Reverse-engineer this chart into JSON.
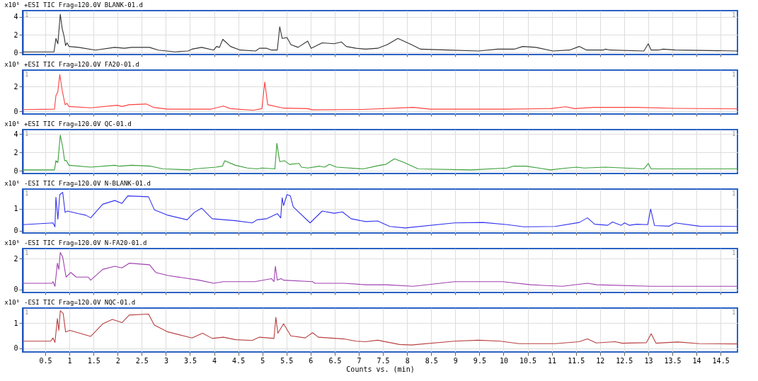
{
  "chart_data": [
    {
      "type": "line",
      "title": "+ESI TIC Frag=120.0V BLANK-01.d",
      "ylabel": "x10⁶",
      "grid": true,
      "tick_labels": "y",
      "annotations": [
        "1",
        "1"
      ],
      "xlim": [
        0.03,
        14.85
      ],
      "xticks": [
        0.5,
        1,
        1.5,
        2,
        2.5,
        3,
        3.5,
        4,
        4.5,
        5,
        5.5,
        6,
        6.5,
        7,
        7.5,
        8,
        8.5,
        9,
        9.5,
        10,
        10.5,
        11,
        11.5,
        12,
        12.5,
        13,
        13.5,
        14,
        14.5
      ],
      "ylim": [
        -0.2,
        4.7
      ],
      "yticks": [
        0,
        2,
        4
      ],
      "x": [
        0.03,
        0.68,
        0.72,
        0.76,
        0.81,
        0.85,
        0.89,
        0.92,
        0.95,
        0.99,
        1.19,
        1.54,
        1.94,
        2.14,
        2.29,
        2.66,
        2.84,
        3.19,
        3.46,
        3.54,
        3.74,
        3.99,
        4.05,
        4.11,
        4.18,
        4.34,
        4.54,
        4.86,
        4.94,
        5.09,
        5.19,
        5.31,
        5.36,
        5.41,
        5.51,
        5.59,
        5.74,
        5.94,
        6.01,
        6.24,
        6.49,
        6.64,
        6.74,
        6.94,
        7.14,
        7.39,
        7.59,
        7.81,
        8.09,
        8.28,
        8.83,
        9.48,
        9.88,
        10.22,
        10.4,
        10.67,
        11.02,
        11.37,
        11.57,
        11.72,
        12.07,
        12.11,
        12.21,
        12.91,
        13.0,
        13.06,
        13.21,
        13.31,
        13.56,
        14.85
      ],
      "series": [
        {
          "color": "#333333",
          "values": [
            0.1,
            0.1,
            1.6,
            1.0,
            4.3,
            2.7,
            1.8,
            0.8,
            1.1,
            0.7,
            0.6,
            0.3,
            0.6,
            0.5,
            0.6,
            0.6,
            0.3,
            0.1,
            0.2,
            0.4,
            0.6,
            0.3,
            0.7,
            0.6,
            1.5,
            0.7,
            0.3,
            0.2,
            0.5,
            0.5,
            0.3,
            0.3,
            2.9,
            1.6,
            1.7,
            0.9,
            0.6,
            1.3,
            0.5,
            1.1,
            1.0,
            1.2,
            0.7,
            0.5,
            0.4,
            0.5,
            0.9,
            1.6,
            0.9,
            0.4,
            0.3,
            0.2,
            0.4,
            0.4,
            0.7,
            0.6,
            0.2,
            0.3,
            0.7,
            0.3,
            0.3,
            0.4,
            0.3,
            0.2,
            1.0,
            0.3,
            0.3,
            0.4,
            0.3,
            0.2
          ]
        }
      ]
    },
    {
      "type": "line",
      "title": "+ESI TIC Frag=120.0V FA20-01.d",
      "ylabel": "x10⁶",
      "grid": true,
      "tick_labels": "y",
      "annotations": [
        "1",
        "1"
      ],
      "xlim": [
        0.03,
        14.85
      ],
      "xticks": [
        0.5,
        1,
        1.5,
        2,
        2.5,
        3,
        3.5,
        4,
        4.5,
        5,
        5.5,
        6,
        6.5,
        7,
        7.5,
        8,
        8.5,
        9,
        9.5,
        10,
        10.5,
        11,
        11.5,
        12,
        12.5,
        13,
        13.5,
        14,
        14.5
      ],
      "ylim": [
        -0.2,
        3.3
      ],
      "yticks": [
        0,
        2
      ],
      "x": [
        0.03,
        0.69,
        0.72,
        0.76,
        0.8,
        0.85,
        0.91,
        0.95,
        0.99,
        1.44,
        1.99,
        2.09,
        2.24,
        2.59,
        2.74,
        3.04,
        3.94,
        4.19,
        4.34,
        4.81,
        4.99,
        5.05,
        5.11,
        5.44,
        5.94,
        6.04,
        7.09,
        8.13,
        8.48,
        10.07,
        10.97,
        11.29,
        11.47,
        11.87,
        12.76,
        13.56,
        14.85
      ],
      "series": [
        {
          "color": "#ff4040",
          "values": [
            0.15,
            0.19,
            1.27,
            1.58,
            2.94,
            1.69,
            0.54,
            0.65,
            0.4,
            0.29,
            0.5,
            0.4,
            0.54,
            0.6,
            0.33,
            0.19,
            0.19,
            0.44,
            0.23,
            0.1,
            0.23,
            2.35,
            0.54,
            0.27,
            0.23,
            0.13,
            0.17,
            0.33,
            0.19,
            0.19,
            0.23,
            0.38,
            0.23,
            0.33,
            0.33,
            0.25,
            0.21
          ]
        }
      ]
    },
    {
      "type": "line",
      "title": "+ESI TIC Frag=120.0V QC-01.d",
      "ylabel": "x10⁶",
      "grid": true,
      "tick_labels": "y",
      "annotations": [
        "1",
        "1"
      ],
      "xlim": [
        0.03,
        14.85
      ],
      "xticks": [
        0.5,
        1,
        1.5,
        2,
        2.5,
        3,
        3.5,
        4,
        4.5,
        5,
        5.5,
        6,
        6.5,
        7,
        7.5,
        8,
        8.5,
        9,
        9.5,
        10,
        10.5,
        11,
        11.5,
        12,
        12.5,
        13,
        13.5,
        14,
        14.5
      ],
      "ylim": [
        -0.3,
        4.5
      ],
      "yticks": [
        0,
        2,
        4
      ],
      "x": [
        0.03,
        0.69,
        0.72,
        0.76,
        0.81,
        0.86,
        0.9,
        0.94,
        0.99,
        1.44,
        1.94,
        2.04,
        2.29,
        2.69,
        2.94,
        3.51,
        3.59,
        4.04,
        4.17,
        4.22,
        4.44,
        4.69,
        4.89,
        4.99,
        5.26,
        5.3,
        5.36,
        5.46,
        5.56,
        5.76,
        5.81,
        5.94,
        6.19,
        6.29,
        6.39,
        6.54,
        7.09,
        7.44,
        7.56,
        7.74,
        7.94,
        8.23,
        9.33,
        10.08,
        10.2,
        10.47,
        10.97,
        11.32,
        11.52,
        11.67,
        12.11,
        12.91,
        13.0,
        13.06,
        14.85
      ],
      "series": [
        {
          "color": "#3aa03a",
          "values": [
            0.1,
            0.1,
            1.1,
            0.9,
            3.9,
            2.6,
            1.1,
            1.1,
            0.6,
            0.4,
            0.6,
            0.5,
            0.6,
            0.5,
            0.2,
            0.1,
            0.2,
            0.4,
            0.5,
            1.1,
            0.6,
            0.3,
            0.2,
            0.3,
            0.2,
            3.0,
            1.0,
            1.1,
            0.7,
            0.8,
            0.4,
            0.3,
            0.5,
            0.4,
            0.7,
            0.4,
            0.2,
            0.6,
            0.7,
            1.3,
            0.9,
            0.2,
            0.1,
            0.3,
            0.5,
            0.5,
            0.1,
            0.3,
            0.4,
            0.3,
            0.4,
            0.2,
            0.8,
            0.2,
            0.2
          ]
        }
      ]
    },
    {
      "type": "line",
      "title": "-ESI TIC Frag=120.0V N-BLANK-01.d",
      "ylabel": "x10⁶",
      "grid": true,
      "tick_labels": "y",
      "annotations": [
        "1",
        "1"
      ],
      "xlim": [
        0.03,
        14.85
      ],
      "xticks": [
        0.5,
        1,
        1.5,
        2,
        2.5,
        3,
        3.5,
        4,
        4.5,
        5,
        5.5,
        6,
        6.5,
        7,
        7.5,
        8,
        8.5,
        9,
        9.5,
        10,
        10.5,
        11,
        11.5,
        12,
        12.5,
        13,
        13.5,
        14,
        14.5
      ],
      "ylim": [
        -0.1,
        1.9
      ],
      "yticks": [
        0,
        1
      ],
      "x": [
        0.03,
        0.66,
        0.7,
        0.72,
        0.76,
        0.8,
        0.86,
        0.91,
        0.96,
        1.19,
        1.34,
        1.44,
        1.69,
        1.94,
        2.09,
        2.21,
        2.64,
        2.76,
        3.04,
        3.44,
        3.59,
        3.74,
        3.96,
        4.44,
        4.79,
        4.89,
        5.09,
        5.31,
        5.38,
        5.41,
        5.44,
        5.51,
        5.58,
        5.64,
        5.99,
        6.24,
        6.49,
        6.66,
        6.84,
        7.14,
        7.39,
        7.64,
        7.96,
        8.98,
        9.58,
        10.08,
        10.42,
        11.07,
        11.57,
        11.74,
        11.89,
        12.16,
        12.26,
        12.44,
        12.51,
        12.61,
        12.76,
        12.99,
        13.05,
        13.13,
        13.43,
        13.56,
        14.06,
        14.85
      ],
      "series": [
        {
          "color": "#3333ee",
          "values": [
            0.28,
            0.36,
            0.18,
            1.53,
            0.53,
            1.65,
            1.75,
            0.84,
            0.9,
            0.78,
            0.71,
            0.59,
            1.21,
            1.38,
            1.25,
            1.59,
            1.55,
            0.96,
            0.71,
            0.5,
            0.84,
            1.03,
            0.55,
            0.46,
            0.36,
            0.5,
            0.55,
            0.78,
            0.59,
            1.5,
            1.15,
            1.65,
            1.59,
            1.09,
            0.36,
            0.9,
            0.8,
            0.86,
            0.55,
            0.42,
            0.45,
            0.2,
            0.13,
            0.36,
            0.38,
            0.28,
            0.18,
            0.2,
            0.38,
            0.59,
            0.3,
            0.25,
            0.4,
            0.25,
            0.36,
            0.25,
            0.3,
            0.28,
            0.99,
            0.24,
            0.21,
            0.36,
            0.21,
            0.2
          ]
        }
      ]
    },
    {
      "type": "line",
      "title": "-ESI TIC Frag=120.0V N-FA20-01.d",
      "ylabel": "x10⁶",
      "grid": true,
      "tick_labels": "y",
      "annotations": [
        "1",
        "1"
      ],
      "xlim": [
        0.03,
        14.85
      ],
      "xticks": [
        0.5,
        1,
        1.5,
        2,
        2.5,
        3,
        3.5,
        4,
        4.5,
        5,
        5.5,
        6,
        6.5,
        7,
        7.5,
        8,
        8.5,
        9,
        9.5,
        10,
        10.5,
        11,
        11.5,
        12,
        12.5,
        13,
        13.5,
        14,
        14.5
      ],
      "ylim": [
        -0.2,
        2.65
      ],
      "yticks": [
        0,
        2
      ],
      "x": [
        0.03,
        0.64,
        0.66,
        0.7,
        0.75,
        0.78,
        0.81,
        0.86,
        0.93,
        1.03,
        1.14,
        1.39,
        1.44,
        1.69,
        1.94,
        2.09,
        2.24,
        2.66,
        2.79,
        3.04,
        3.69,
        3.99,
        4.19,
        4.44,
        4.84,
        5.19,
        5.24,
        5.27,
        5.31,
        5.39,
        5.44,
        6.04,
        6.09,
        6.69,
        7.14,
        7.56,
        8.13,
        8.98,
        9.28,
        9.98,
        10.57,
        11.22,
        11.74,
        11.94,
        13.06,
        14.85
      ],
      "series": [
        {
          "color": "#a040b0",
          "values": [
            0.4,
            0.4,
            0.5,
            0.2,
            1.7,
            1.3,
            2.4,
            2.1,
            0.8,
            1.1,
            0.8,
            0.8,
            0.6,
            1.3,
            1.5,
            1.4,
            1.7,
            1.6,
            1.1,
            0.9,
            0.6,
            0.4,
            0.5,
            0.5,
            0.5,
            0.7,
            0.5,
            1.5,
            0.6,
            0.7,
            0.6,
            0.5,
            0.4,
            0.4,
            0.3,
            0.3,
            0.2,
            0.5,
            0.5,
            0.5,
            0.3,
            0.2,
            0.4,
            0.3,
            0.2,
            0.2
          ]
        }
      ]
    },
    {
      "type": "line",
      "title": "-ESI TIC Frag=120.0V NQC-01.d",
      "ylabel": "x10⁶",
      "xlabel": "Counts vs. (min)",
      "grid": true,
      "annotations": [
        "1",
        "1"
      ],
      "xlim": [
        0.03,
        14.85
      ],
      "xticks": [
        0.5,
        1,
        1.5,
        2,
        2.5,
        3,
        3.5,
        4,
        4.5,
        5,
        5.5,
        6,
        6.5,
        7,
        7.5,
        8,
        8.5,
        9,
        9.5,
        10,
        10.5,
        11,
        11.5,
        12,
        12.5,
        13,
        13.5,
        14,
        14.5
      ],
      "ylim": [
        -0.15,
        1.6
      ],
      "yticks": [
        0,
        1
      ],
      "x": [
        0.03,
        0.61,
        0.66,
        0.7,
        0.75,
        0.78,
        0.81,
        0.87,
        0.92,
        1.01,
        1.44,
        1.69,
        1.89,
        2.09,
        2.24,
        2.64,
        2.76,
        3.04,
        3.54,
        3.76,
        3.96,
        4.19,
        4.44,
        4.79,
        4.94,
        5.24,
        5.28,
        5.32,
        5.44,
        5.59,
        5.89,
        6.04,
        6.16,
        6.69,
        6.94,
        7.14,
        7.39,
        7.84,
        8.09,
        8.98,
        9.48,
        9.93,
        10.32,
        11.07,
        11.57,
        11.74,
        11.92,
        12.31,
        12.46,
        12.96,
        13.06,
        13.16,
        13.61,
        14.06,
        14.85
      ],
      "series": [
        {
          "color": "#b84040",
          "values": [
            0.28,
            0.28,
            0.41,
            0.23,
            1.18,
            0.71,
            1.49,
            1.39,
            0.65,
            0.71,
            0.47,
            0.97,
            1.15,
            1.02,
            1.32,
            1.36,
            0.92,
            0.65,
            0.41,
            0.6,
            0.39,
            0.44,
            0.34,
            0.31,
            0.44,
            0.39,
            1.23,
            0.6,
            0.97,
            0.49,
            0.41,
            0.62,
            0.44,
            0.37,
            0.28,
            0.26,
            0.32,
            0.15,
            0.13,
            0.28,
            0.32,
            0.28,
            0.18,
            0.18,
            0.26,
            0.37,
            0.21,
            0.26,
            0.2,
            0.22,
            0.58,
            0.2,
            0.25,
            0.18,
            0.17
          ]
        }
      ]
    }
  ]
}
